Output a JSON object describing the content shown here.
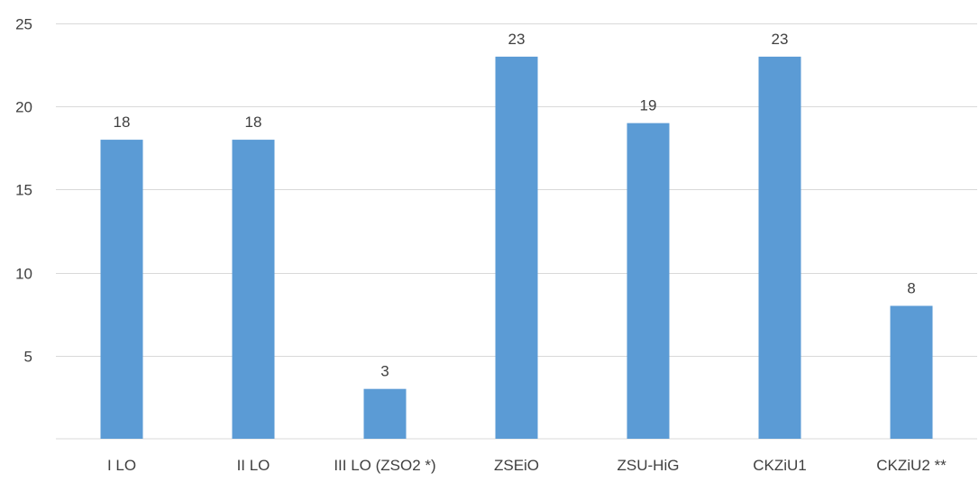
{
  "chart_data": {
    "type": "bar",
    "categories": [
      "I LO",
      "II LO",
      "III LO (ZSO2 *)",
      "ZSEiO",
      "ZSU-HiG",
      "CKZiU1",
      "CKZiU2 **"
    ],
    "values": [
      18,
      18,
      3,
      23,
      19,
      23,
      8
    ],
    "value_labels": [
      "18",
      "18",
      "3",
      "23",
      "19",
      "23",
      "8"
    ],
    "title": "",
    "xlabel": "",
    "ylabel": "",
    "ylim": [
      0,
      25
    ],
    "yticks": [
      5,
      10,
      15,
      20,
      25
    ],
    "ytick_labels": [
      "5",
      "10",
      "15",
      "20",
      "25"
    ],
    "grid": true,
    "legend": "none",
    "colors": {
      "bar": "#5b9bd5",
      "grid": "#d9d9d9",
      "text": "#404040"
    }
  }
}
